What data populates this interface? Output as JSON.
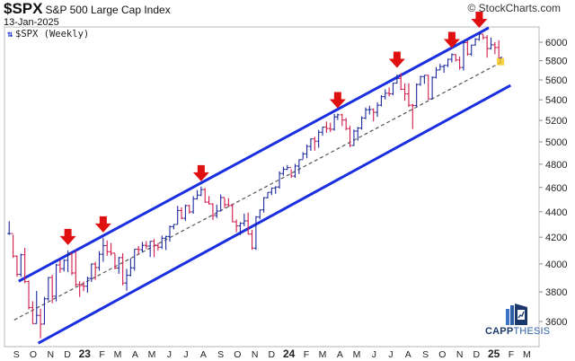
{
  "header": {
    "symbol": "$SPX",
    "name": "S&P 500 Large Cap Index",
    "date": "13-Jan-2025",
    "copyright": "© StockCharts.com",
    "legend": "$SPX (Weekly)"
  },
  "logo": {
    "part1": "CAPP",
    "part2": "THESIS"
  },
  "colors": {
    "up": "#1e2a9e",
    "down": "#d21a4a",
    "channel": "#1a2fe0",
    "midline": "#555555",
    "arrow": "#e01010",
    "marker": "#f5c518"
  },
  "chart_data": {
    "type": "ohlc-bar",
    "interval": "weekly",
    "y_scale": "log",
    "ylim": [
      3450,
      6200
    ],
    "y_ticks": [
      3600,
      3800,
      4000,
      4200,
      4400,
      4600,
      4800,
      5000,
      5200,
      5400,
      5600,
      5800,
      6000
    ],
    "x_range": [
      "2022-08-15",
      "2025-03-31"
    ],
    "x_tick_labels": [
      "S",
      "O",
      "N",
      "D",
      "23",
      "F",
      "M",
      "A",
      "M",
      "J",
      "J",
      "A",
      "S",
      "O",
      "N",
      "D",
      "24",
      "F",
      "M",
      "A",
      "M",
      "J",
      "J",
      "A",
      "S",
      "O",
      "N",
      "D",
      "25",
      "F",
      "M"
    ],
    "grid": false,
    "bar_columns": [
      "date",
      "high",
      "low",
      "close"
    ],
    "bars": [
      [
        "2022-08-19",
        4325,
        4218,
        4228
      ],
      [
        "2022-08-26",
        4218,
        4045,
        4057
      ],
      [
        "2022-09-02",
        4062,
        3907,
        3924
      ],
      [
        "2022-09-09",
        4076,
        3906,
        4067
      ],
      [
        "2022-09-16",
        4119,
        3860,
        3873
      ],
      [
        "2022-09-23",
        3880,
        3680,
        3693
      ],
      [
        "2022-09-30",
        3736,
        3585,
        3586
      ],
      [
        "2022-10-07",
        3807,
        3585,
        3640
      ],
      [
        "2022-10-14",
        3685,
        3491,
        3583
      ],
      [
        "2022-10-21",
        3765,
        3581,
        3752
      ],
      [
        "2022-10-28",
        3905,
        3740,
        3901
      ],
      [
        "2022-11-04",
        3920,
        3722,
        3770
      ],
      [
        "2022-11-11",
        4000,
        3735,
        3992
      ],
      [
        "2022-11-18",
        4028,
        3935,
        3965
      ],
      [
        "2022-11-25",
        4034,
        3945,
        4026
      ],
      [
        "2022-12-02",
        4100,
        3940,
        4072
      ],
      [
        "2022-12-09",
        4080,
        3918,
        3934
      ],
      [
        "2022-12-16",
        4101,
        3838,
        3852
      ],
      [
        "2022-12-23",
        3875,
        3765,
        3845
      ],
      [
        "2022-12-30",
        3873,
        3805,
        3840
      ],
      [
        "2023-01-06",
        3907,
        3795,
        3895
      ],
      [
        "2023-01-13",
        4003,
        3870,
        3999
      ],
      [
        "2023-01-20",
        4015,
        3885,
        3973
      ],
      [
        "2023-01-27",
        4095,
        3950,
        4071
      ],
      [
        "2023-02-03",
        4195,
        4015,
        4136
      ],
      [
        "2023-02-10",
        4175,
        4060,
        4090
      ],
      [
        "2023-02-17",
        4156,
        4060,
        4079
      ],
      [
        "2023-02-24",
        4075,
        3960,
        3970
      ],
      [
        "2023-03-03",
        4050,
        3928,
        4046
      ],
      [
        "2023-03-10",
        4079,
        3846,
        3862
      ],
      [
        "2023-03-17",
        3964,
        3808,
        3917
      ],
      [
        "2023-03-24",
        4040,
        3910,
        3971
      ],
      [
        "2023-03-31",
        4110,
        3950,
        4109
      ],
      [
        "2023-04-07",
        4133,
        4070,
        4105
      ],
      [
        "2023-04-14",
        4164,
        4085,
        4138
      ],
      [
        "2023-04-21",
        4170,
        4110,
        4133
      ],
      [
        "2023-04-28",
        4170,
        4050,
        4169
      ],
      [
        "2023-05-05",
        4186,
        4049,
        4136
      ],
      [
        "2023-05-12",
        4155,
        4098,
        4124
      ],
      [
        "2023-05-19",
        4213,
        4110,
        4192
      ],
      [
        "2023-05-26",
        4212,
        4103,
        4205
      ],
      [
        "2023-06-02",
        4290,
        4166,
        4282
      ],
      [
        "2023-06-09",
        4300,
        4260,
        4299
      ],
      [
        "2023-06-16",
        4448,
        4300,
        4410
      ],
      [
        "2023-06-23",
        4435,
        4340,
        4348
      ],
      [
        "2023-06-30",
        4458,
        4328,
        4450
      ],
      [
        "2023-07-07",
        4456,
        4385,
        4399
      ],
      [
        "2023-07-14",
        4528,
        4385,
        4505
      ],
      [
        "2023-07-21",
        4578,
        4500,
        4536
      ],
      [
        "2023-07-28",
        4607,
        4528,
        4582
      ],
      [
        "2023-08-04",
        4595,
        4474,
        4478
      ],
      [
        "2023-08-11",
        4528,
        4458,
        4464
      ],
      [
        "2023-08-18",
        4468,
        4335,
        4370
      ],
      [
        "2023-08-25",
        4458,
        4350,
        4406
      ],
      [
        "2023-09-01",
        4541,
        4403,
        4516
      ],
      [
        "2023-09-08",
        4512,
        4430,
        4457
      ],
      [
        "2023-09-15",
        4511,
        4445,
        4450
      ],
      [
        "2023-09-22",
        4463,
        4316,
        4320
      ],
      [
        "2023-09-29",
        4338,
        4238,
        4288
      ],
      [
        "2023-10-06",
        4317,
        4216,
        4308
      ],
      [
        "2023-10-13",
        4385,
        4285,
        4327
      ],
      [
        "2023-10-20",
        4393,
        4223,
        4224
      ],
      [
        "2023-10-27",
        4256,
        4104,
        4117
      ],
      [
        "2023-11-03",
        4366,
        4103,
        4358
      ],
      [
        "2023-11-10",
        4418,
        4340,
        4415
      ],
      [
        "2023-11-17",
        4520,
        4393,
        4514
      ],
      [
        "2023-11-24",
        4560,
        4510,
        4559
      ],
      [
        "2023-12-01",
        4599,
        4537,
        4595
      ],
      [
        "2023-12-08",
        4610,
        4547,
        4604
      ],
      [
        "2023-12-15",
        4738,
        4590,
        4719
      ],
      [
        "2023-12-22",
        4778,
        4700,
        4755
      ],
      [
        "2023-12-29",
        4793,
        4750,
        4770
      ],
      [
        "2024-01-05",
        4755,
        4682,
        4697
      ],
      [
        "2024-01-12",
        4803,
        4682,
        4784
      ],
      [
        "2024-01-19",
        4842,
        4715,
        4840
      ],
      [
        "2024-01-26",
        4907,
        4845,
        4891
      ],
      [
        "2024-02-02",
        4975,
        4853,
        4959
      ],
      [
        "2024-02-09",
        5030,
        4918,
        5027
      ],
      [
        "2024-02-16",
        5048,
        4920,
        5006
      ],
      [
        "2024-02-23",
        5111,
        4946,
        5089
      ],
      [
        "2024-03-01",
        5140,
        5057,
        5137
      ],
      [
        "2024-03-08",
        5190,
        5084,
        5124
      ],
      [
        "2024-03-15",
        5179,
        5091,
        5117
      ],
      [
        "2024-03-22",
        5262,
        5104,
        5234
      ],
      [
        "2024-03-28",
        5265,
        5203,
        5254
      ],
      [
        "2024-04-05",
        5264,
        5146,
        5204
      ],
      [
        "2024-04-12",
        5224,
        5107,
        5123
      ],
      [
        "2024-04-19",
        5150,
        4953,
        4967
      ],
      [
        "2024-04-26",
        5114,
        4963,
        5100
      ],
      [
        "2024-05-03",
        5139,
        5011,
        5128
      ],
      [
        "2024-05-10",
        5240,
        5113,
        5223
      ],
      [
        "2024-05-17",
        5325,
        5212,
        5303
      ],
      [
        "2024-05-24",
        5342,
        5257,
        5305
      ],
      [
        "2024-05-31",
        5315,
        5191,
        5278
      ],
      [
        "2024-06-07",
        5375,
        5234,
        5347
      ],
      [
        "2024-06-14",
        5447,
        5334,
        5431
      ],
      [
        "2024-06-21",
        5505,
        5403,
        5465
      ],
      [
        "2024-06-28",
        5524,
        5433,
        5460
      ],
      [
        "2024-07-05",
        5570,
        5445,
        5567
      ],
      [
        "2024-07-12",
        5656,
        5564,
        5615
      ],
      [
        "2024-07-19",
        5670,
        5497,
        5505
      ],
      [
        "2024-07-26",
        5566,
        5390,
        5459
      ],
      [
        "2024-08-02",
        5566,
        5330,
        5347
      ],
      [
        "2024-08-09",
        5360,
        5119,
        5344
      ],
      [
        "2024-08-16",
        5564,
        5330,
        5554
      ],
      [
        "2024-08-23",
        5643,
        5540,
        5634
      ],
      [
        "2024-08-30",
        5651,
        5560,
        5648
      ],
      [
        "2024-09-06",
        5652,
        5402,
        5408
      ],
      [
        "2024-09-13",
        5636,
        5406,
        5626
      ],
      [
        "2024-09-20",
        5734,
        5615,
        5703
      ],
      [
        "2024-09-27",
        5767,
        5703,
        5738
      ],
      [
        "2024-10-04",
        5757,
        5674,
        5751
      ],
      [
        "2024-10-11",
        5822,
        5734,
        5815
      ],
      [
        "2024-10-18",
        5878,
        5782,
        5865
      ],
      [
        "2024-10-25",
        5870,
        5791,
        5808
      ],
      [
        "2024-11-01",
        5845,
        5705,
        5729
      ],
      [
        "2024-11-08",
        6012,
        5697,
        5996
      ],
      [
        "2024-11-15",
        6017,
        5853,
        5871
      ],
      [
        "2024-11-22",
        5973,
        5850,
        5969
      ],
      [
        "2024-11-29",
        6045,
        5963,
        6032
      ],
      [
        "2024-12-06",
        6099,
        6016,
        6090
      ],
      [
        "2024-12-13",
        6085,
        6029,
        6051
      ],
      [
        "2024-12-20",
        6078,
        5832,
        5931
      ],
      [
        "2024-12-27",
        6050,
        5920,
        5971
      ],
      [
        "2025-01-03",
        6000,
        5870,
        5942
      ],
      [
        "2025-01-10",
        6021,
        5823,
        5827
      ],
      [
        "2025-01-13",
        5837,
        5773,
        5836
      ]
    ],
    "channel_lines": [
      {
        "style": "solid",
        "from": [
          "2022-09-05",
          3875
        ],
        "to": [
          "2024-12-23",
          6160
        ]
      },
      {
        "style": "solid",
        "from": [
          "2022-10-10",
          3460
        ],
        "to": [
          "2025-01-31",
          5545
        ]
      },
      {
        "style": "dashed",
        "from": [
          "2022-08-28",
          3610
        ],
        "to": [
          "2025-01-13",
          5780
        ]
      }
    ],
    "arrows": [
      {
        "date": "2022-12-02",
        "value": 4100
      },
      {
        "date": "2023-02-03",
        "value": 4195
      },
      {
        "date": "2023-07-28",
        "value": 4607
      },
      {
        "date": "2024-03-28",
        "value": 5265
      },
      {
        "date": "2024-07-12",
        "value": 5670
      },
      {
        "date": "2024-10-18",
        "value": 5878
      },
      {
        "date": "2024-12-06",
        "value": 6099
      }
    ],
    "last_marker": {
      "date": "2025-01-13",
      "value": 5790
    }
  }
}
